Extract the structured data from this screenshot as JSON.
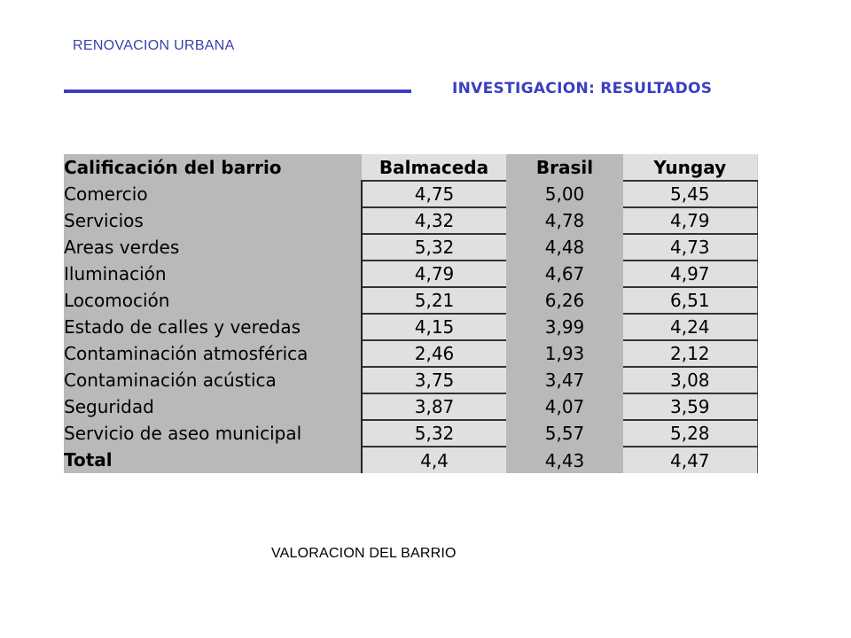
{
  "header": {
    "top_label": "RENOVACION URBANA",
    "section_title": "INVESTIGACION: RESULTADOS",
    "accent_color": "#3c3fc0"
  },
  "table": {
    "headers": [
      "Calificación del barrio",
      "Balmaceda",
      "Brasil",
      "Yungay"
    ],
    "rows": [
      {
        "label": "Comercio",
        "values": [
          "4,75",
          "5,00",
          "5,45"
        ]
      },
      {
        "label": "Servicios",
        "values": [
          "4,32",
          "4,78",
          "4,79"
        ]
      },
      {
        "label": "Areas verdes",
        "values": [
          "5,32",
          "4,48",
          "4,73"
        ]
      },
      {
        "label": "Iluminación",
        "values": [
          "4,79",
          "4,67",
          "4,97"
        ]
      },
      {
        "label": "Locomoción",
        "values": [
          "5,21",
          "6,26",
          "6,51"
        ]
      },
      {
        "label": "Estado de calles y veredas",
        "values": [
          "4,15",
          "3,99",
          "4,24"
        ]
      },
      {
        "label": "Contaminación atmosférica",
        "values": [
          "2,46",
          "1,93",
          "2,12"
        ]
      },
      {
        "label": "Contaminación acústica",
        "values": [
          "3,75",
          "3,47",
          "3,08"
        ]
      },
      {
        "label": "Seguridad",
        "values": [
          "3,87",
          "4,07",
          "3,59"
        ]
      },
      {
        "label": "Servicio de aseo municipal",
        "values": [
          "5,32",
          "5,57",
          "5,28"
        ]
      },
      {
        "label": "Total",
        "values": [
          "4,4",
          "4,43",
          "4,47"
        ]
      }
    ]
  },
  "caption": "VALORACION DEL BARRIO"
}
